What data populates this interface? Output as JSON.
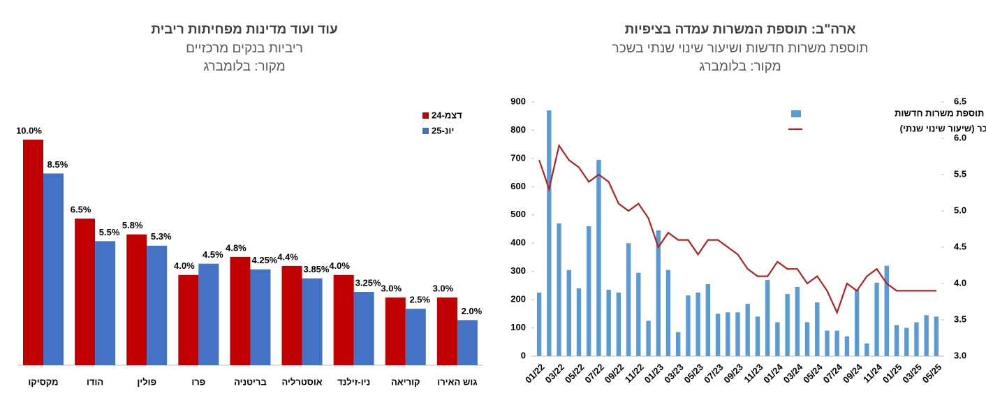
{
  "chart_data": [
    {
      "type": "bar",
      "title": "עוד ועוד מדינות מפחיתות ריבית",
      "subtitle": "ריביות בנקים מרכזיים",
      "source": "מקור: בלומברג",
      "categories": [
        "מקסיקו",
        "הודו",
        "פולין",
        "פרו",
        "בריטניה",
        "אוסטרליה",
        "ניו-זילנד",
        "קוריאה",
        "גוש האירו"
      ],
      "series": [
        {
          "name": "דצמ-24",
          "color": "#c00000",
          "values": [
            10.0,
            6.5,
            5.8,
            4.0,
            4.8,
            4.4,
            4.0,
            3.0,
            3.0
          ],
          "value_labels": [
            "10.0%",
            "6.5%",
            "5.8%",
            "4.0%",
            "4.8%",
            "4.4%",
            "4.0%",
            "3.0%",
            "3.0%"
          ]
        },
        {
          "name": "יונ-25",
          "color": "#4472c4",
          "values": [
            8.5,
            5.5,
            5.3,
            4.5,
            4.25,
            3.85,
            3.25,
            2.5,
            2.0
          ],
          "value_labels": [
            "8.5%",
            "5.5%",
            "5.3%",
            "4.5%",
            "4.25%",
            "3.85%",
            "3.25%",
            "2.5%",
            "2.0%"
          ]
        }
      ],
      "legend": "upper right"
    },
    {
      "type": "combo",
      "title": "ארה\"ב: תוספת המשרות עמדה בציפיות",
      "subtitle": "תוספת משרות חדשות ושיעור שינוי שנתי בשכר",
      "source": "מקור: בלומברג",
      "categories": [
        "01/22",
        null,
        "03/22",
        null,
        "05/22",
        null,
        "07/22",
        null,
        "09/22",
        null,
        "11/22",
        null,
        "01/23",
        null,
        "03/23",
        null,
        "05/23",
        null,
        "07/23",
        null,
        "09/23",
        null,
        "11/23",
        null,
        "01/24",
        null,
        "03/24",
        null,
        "05/24",
        null,
        "07/24",
        null,
        "09/24",
        null,
        "11/24",
        null,
        "01/25",
        null,
        "03/25",
        null,
        "05/25"
      ],
      "series": [
        {
          "name": "תוספת משרות חדשות",
          "color": "#5b9bd5",
          "kind": "bar",
          "values": [
            225,
            870,
            470,
            305,
            240,
            460,
            695,
            235,
            225,
            400,
            295,
            125,
            445,
            305,
            85,
            215,
            225,
            255,
            150,
            155,
            155,
            185,
            140,
            270,
            120,
            220,
            245,
            120,
            190,
            90,
            90,
            70,
            235,
            45,
            260,
            320,
            110,
            100,
            120,
            145,
            140
          ]
        },
        {
          "name": "שכר (שיעור שינוי שנתי)",
          "color": "#b22222",
          "kind": "line",
          "axis": "y2",
          "values": [
            5.7,
            5.3,
            5.9,
            5.7,
            5.6,
            5.4,
            5.5,
            5.4,
            5.1,
            5.0,
            5.1,
            4.9,
            4.5,
            4.7,
            4.6,
            4.6,
            4.4,
            4.6,
            4.6,
            4.5,
            4.4,
            4.2,
            4.1,
            4.1,
            4.3,
            4.2,
            4.2,
            4.0,
            4.1,
            3.9,
            3.6,
            4.0,
            3.9,
            4.1,
            4.2,
            4.0,
            3.9,
            3.9,
            3.9,
            3.9,
            3.9
          ]
        }
      ],
      "ylim": [
        0,
        900
      ],
      "yticks": [
        0,
        100,
        200,
        300,
        400,
        500,
        600,
        700,
        800,
        900
      ],
      "y2lim": [
        3.0,
        6.5
      ],
      "y2ticks": [
        {
          "value": 3.0,
          "label": "3.0"
        },
        3.5,
        {
          "value": 4.0,
          "label": "4.0"
        },
        4.5,
        {
          "value": 5.0,
          "label": "5.0"
        },
        5.5,
        {
          "value": 6.0,
          "label": "6.0"
        },
        6.5
      ],
      "legend": "upper right"
    }
  ]
}
